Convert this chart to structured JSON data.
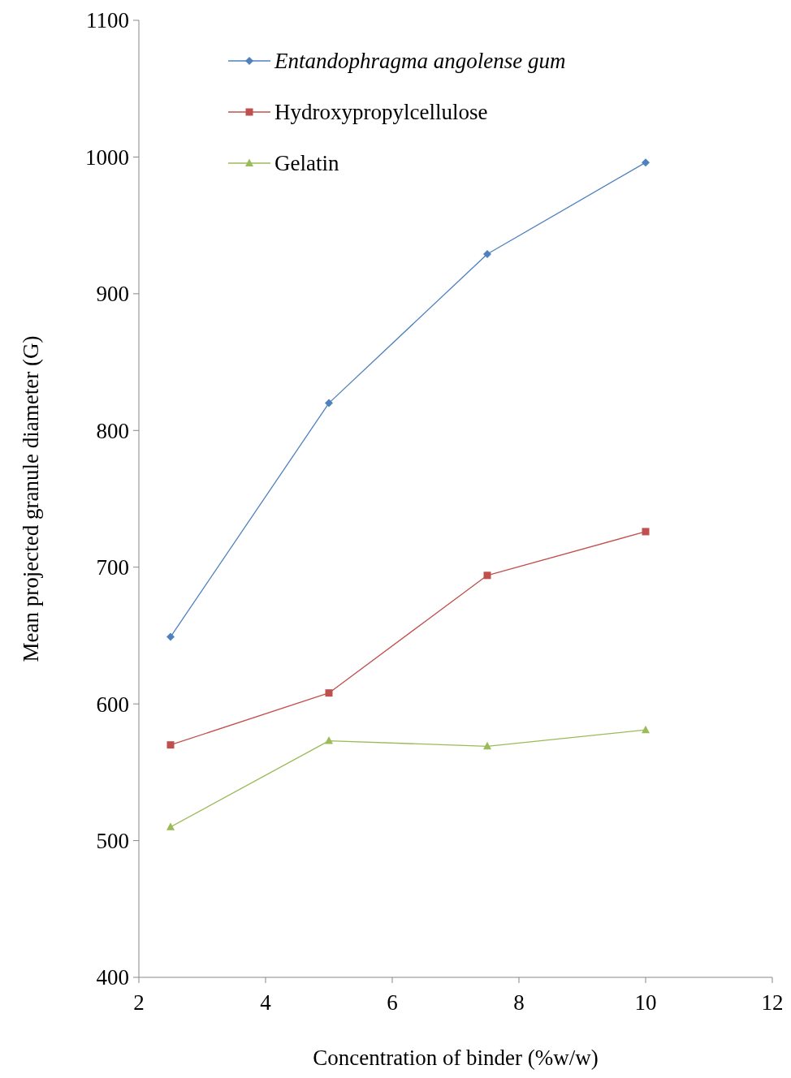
{
  "chart_data": {
    "type": "line",
    "xlabel": "Concentration of binder (%w/w)",
    "ylabel": "Mean projected granule diameter (G)",
    "x": [
      2.5,
      5,
      7.5,
      10
    ],
    "series": [
      {
        "name": "Entandophragma angolense gum",
        "color": "#4f81bd",
        "marker": "diamond",
        "values": [
          649,
          820,
          929,
          996
        ]
      },
      {
        "name": "Hydroxypropylcellulose",
        "color": "#c0504d",
        "marker": "square",
        "values": [
          570,
          608,
          694,
          726
        ]
      },
      {
        "name": "Gelatin",
        "color": "#9bbb59",
        "marker": "triangle",
        "values": [
          510,
          573,
          569,
          581
        ]
      }
    ],
    "xlim": [
      2,
      12
    ],
    "xticks": [
      2,
      4,
      6,
      8,
      10,
      12
    ],
    "ylim": [
      400,
      1100
    ],
    "yticks": [
      400,
      500,
      600,
      700,
      800,
      900,
      1000,
      1100
    ],
    "grid": false,
    "legend": "top left",
    "line_style": "solid"
  }
}
